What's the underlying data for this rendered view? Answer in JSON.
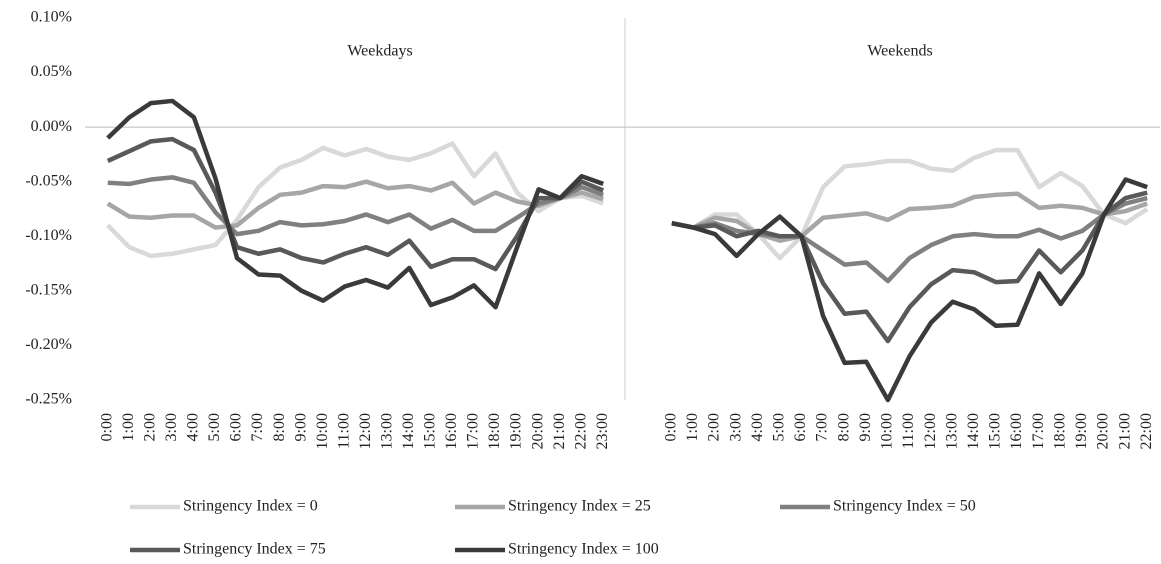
{
  "chart_data": [
    {
      "type": "line",
      "title": "Weekdays",
      "ylim": [
        -0.25,
        0.1
      ],
      "yticks": [
        {
          "value": 0.1,
          "label": "0.10%"
        },
        {
          "value": 0.05,
          "label": "0.05%"
        },
        {
          "value": 0,
          "label": "0.00%"
        },
        {
          "value": -0.05,
          "label": "-0.05%"
        },
        {
          "value": -0.1,
          "label": "-0.10%"
        },
        {
          "value": -0.15,
          "label": "-0.15%"
        },
        {
          "value": -0.2,
          "label": "-0.20%"
        },
        {
          "value": -0.25,
          "label": "-0.25%"
        }
      ],
      "legend": "bottom",
      "categories": [
        "0:00",
        "1:00",
        "2:00",
        "3:00",
        "4:00",
        "5:00",
        "6:00",
        "7:00",
        "8:00",
        "9:00",
        "10:00",
        "11:00",
        "12:00",
        "13:00",
        "14:00",
        "15:00",
        "16:00",
        "17:00",
        "18:00",
        "19:00",
        "20:00",
        "21:00",
        "22:00",
        "23:00"
      ],
      "series": [
        {
          "name": "Stringency Index = 0",
          "color": "#d9d9d9",
          "values": [
            -0.09,
            -0.11,
            -0.118,
            -0.116,
            -0.112,
            -0.108,
            -0.085,
            -0.055,
            -0.037,
            -0.03,
            -0.019,
            -0.026,
            -0.02,
            -0.027,
            -0.03,
            -0.024,
            -0.015,
            -0.045,
            -0.024,
            -0.06,
            -0.077,
            -0.065,
            -0.063,
            -0.07
          ]
        },
        {
          "name": "Stringency Index = 25",
          "color": "#a6a6a6",
          "values": [
            -0.07,
            -0.082,
            -0.083,
            -0.081,
            -0.081,
            -0.092,
            -0.09,
            -0.074,
            -0.062,
            -0.06,
            -0.054,
            -0.055,
            -0.05,
            -0.056,
            -0.054,
            -0.058,
            -0.051,
            -0.07,
            -0.06,
            -0.068,
            -0.072,
            -0.065,
            -0.06,
            -0.066
          ]
        },
        {
          "name": "Stringency Index = 50",
          "color": "#808080",
          "values": [
            -0.051,
            -0.052,
            -0.048,
            -0.046,
            -0.051,
            -0.078,
            -0.098,
            -0.095,
            -0.087,
            -0.09,
            -0.089,
            -0.086,
            -0.08,
            -0.087,
            -0.08,
            -0.093,
            -0.085,
            -0.095,
            -0.095,
            -0.083,
            -0.07,
            -0.065,
            -0.055,
            -0.062
          ]
        },
        {
          "name": "Stringency Index = 75",
          "color": "#595959",
          "values": [
            -0.031,
            -0.022,
            -0.013,
            -0.011,
            -0.021,
            -0.06,
            -0.11,
            -0.116,
            -0.112,
            -0.12,
            -0.124,
            -0.116,
            -0.11,
            -0.117,
            -0.104,
            -0.128,
            -0.121,
            -0.121,
            -0.13,
            -0.1,
            -0.065,
            -0.065,
            -0.05,
            -0.058
          ]
        },
        {
          "name": "Stringency Index = 100",
          "color": "#3a3a3a",
          "values": [
            -0.01,
            0.009,
            0.022,
            0.024,
            0.009,
            -0.047,
            -0.12,
            -0.135,
            -0.136,
            -0.15,
            -0.159,
            -0.146,
            -0.14,
            -0.147,
            -0.129,
            -0.163,
            -0.156,
            -0.145,
            -0.165,
            -0.11,
            -0.057,
            -0.065,
            -0.045,
            -0.052
          ]
        }
      ]
    },
    {
      "type": "line",
      "title": "Weekends",
      "ylim": [
        -0.25,
        0.1
      ],
      "categories": [
        "0:00",
        "1:00",
        "2:00",
        "3:00",
        "4:00",
        "5:00",
        "6:00",
        "7:00",
        "8:00",
        "9:00",
        "10:00",
        "11:00",
        "12:00",
        "13:00",
        "14:00",
        "15:00",
        "16:00",
        "17:00",
        "18:00",
        "19:00",
        "20:00",
        "21:00",
        "22:00"
      ],
      "series": [
        {
          "color": "#d9d9d9",
          "values": [
            -0.088,
            -0.092,
            -0.08,
            -0.08,
            -0.098,
            -0.12,
            -0.1,
            -0.055,
            -0.036,
            -0.034,
            -0.031,
            -0.031,
            -0.038,
            -0.04,
            -0.028,
            -0.021,
            -0.021,
            -0.055,
            -0.042,
            -0.054,
            -0.08,
            -0.088,
            -0.075
          ]
        },
        {
          "color": "#a6a6a6",
          "values": [
            -0.088,
            -0.092,
            -0.083,
            -0.086,
            -0.098,
            -0.104,
            -0.1,
            -0.083,
            -0.081,
            -0.079,
            -0.085,
            -0.075,
            -0.074,
            -0.072,
            -0.064,
            -0.062,
            -0.061,
            -0.074,
            -0.072,
            -0.074,
            -0.08,
            -0.077,
            -0.07
          ]
        },
        {
          "color": "#808080",
          "values": [
            -0.088,
            -0.092,
            -0.088,
            -0.095,
            -0.098,
            -0.1,
            -0.1,
            -0.113,
            -0.126,
            -0.124,
            -0.141,
            -0.12,
            -0.108,
            -0.1,
            -0.098,
            -0.1,
            -0.1,
            -0.094,
            -0.102,
            -0.095,
            -0.08,
            -0.07,
            -0.065
          ]
        },
        {
          "color": "#595959",
          "values": [
            -0.088,
            -0.092,
            -0.09,
            -0.1,
            -0.095,
            -0.1,
            -0.1,
            -0.143,
            -0.171,
            -0.169,
            -0.196,
            -0.165,
            -0.144,
            -0.131,
            -0.133,
            -0.142,
            -0.141,
            -0.113,
            -0.133,
            -0.113,
            -0.08,
            -0.065,
            -0.06
          ]
        },
        {
          "color": "#3a3a3a",
          "values": [
            -0.088,
            -0.092,
            -0.098,
            -0.118,
            -0.098,
            -0.082,
            -0.1,
            -0.173,
            -0.216,
            -0.215,
            -0.25,
            -0.21,
            -0.179,
            -0.16,
            -0.167,
            -0.182,
            -0.181,
            -0.134,
            -0.162,
            -0.134,
            -0.08,
            -0.048,
            -0.055
          ]
        }
      ]
    }
  ]
}
